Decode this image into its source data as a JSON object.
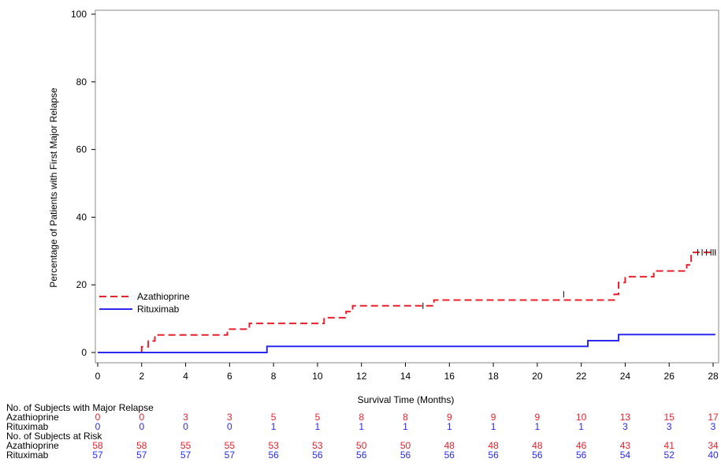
{
  "chart_data": {
    "type": "line",
    "step": true,
    "xlabel": "Survival Time (Months)",
    "ylabel": "Percentage of Patients with First Major Relapse",
    "xlim": [
      0,
      28
    ],
    "ylim": [
      0,
      100
    ],
    "x_ticks": [
      0,
      2,
      4,
      6,
      8,
      10,
      12,
      14,
      16,
      18,
      20,
      22,
      24,
      26,
      28
    ],
    "y_ticks": [
      0,
      20,
      40,
      60,
      80,
      100
    ],
    "grid": false,
    "legend_position": "lower-left",
    "series": [
      {
        "name": "Azathioprine",
        "color": "#e8202a",
        "line_style": "dashed",
        "x": [
          0,
          2.0,
          2.3,
          2.6,
          3.0,
          5.9,
          6.9,
          10.1,
          10.3,
          11.3,
          11.6,
          15.3,
          23.5,
          23.7,
          24.0,
          25.3,
          26.8,
          27.0,
          28.1
        ],
        "y": [
          0,
          1.7,
          3.4,
          5.2,
          5.2,
          6.9,
          8.6,
          8.6,
          10.3,
          12.1,
          13.8,
          15.5,
          17.2,
          20.7,
          22.4,
          24.1,
          25.9,
          29.6,
          29.6
        ],
        "censor_x": [
          14.8,
          21.2,
          27.3,
          27.5,
          27.7,
          27.9,
          28.0,
          28.1
        ],
        "censor_y": [
          13.8,
          17.2,
          29.6,
          29.6,
          29.6,
          29.6,
          29.6,
          29.6
        ]
      },
      {
        "name": "Rituximab",
        "color": "#2a2aef",
        "line_style": "solid",
        "x": [
          0,
          7.7,
          22.3,
          23.7,
          28.1
        ],
        "y": [
          0,
          1.8,
          3.5,
          5.3,
          5.3
        ]
      }
    ],
    "risk_table": {
      "time_points": [
        0,
        2,
        4,
        6,
        8,
        10,
        12,
        14,
        16,
        18,
        20,
        22,
        24,
        26,
        28
      ],
      "relapse_header": "No. of Subjects with Major Relapse",
      "at_risk_header": "No. of Subjects at Risk",
      "relapse_rows": [
        {
          "name": "Azathioprine",
          "values": [
            0,
            0,
            3,
            3,
            5,
            5,
            8,
            8,
            9,
            9,
            9,
            10,
            13,
            15,
            17
          ]
        },
        {
          "name": "Rituximab",
          "values": [
            0,
            0,
            0,
            0,
            1,
            1,
            1,
            1,
            1,
            1,
            1,
            1,
            3,
            3,
            3
          ]
        }
      ],
      "at_risk_rows": [
        {
          "name": "Azathioprine",
          "values": [
            58,
            58,
            55,
            55,
            53,
            53,
            50,
            50,
            48,
            48,
            48,
            46,
            43,
            41,
            34
          ]
        },
        {
          "name": "Rituximab",
          "values": [
            57,
            57,
            57,
            57,
            56,
            56,
            56,
            56,
            56,
            56,
            56,
            56,
            54,
            52,
            40
          ]
        }
      ]
    }
  }
}
